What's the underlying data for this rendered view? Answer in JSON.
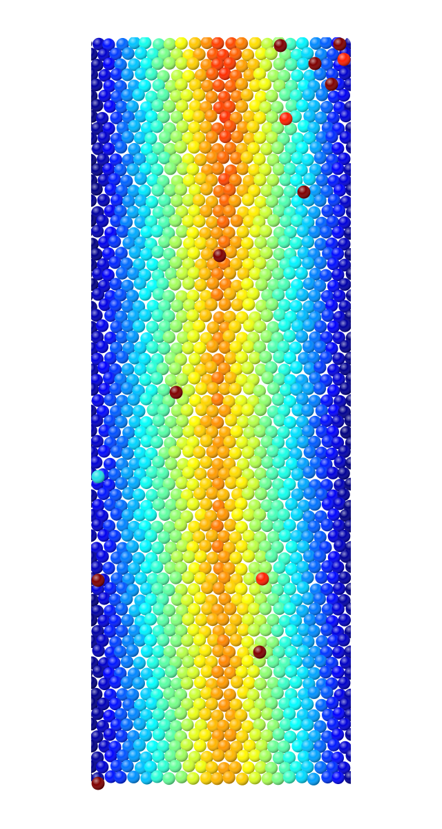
{
  "scene": {
    "description_name": "granular-packing-velocity-field",
    "background": "#ffffff",
    "colormap": [
      "#00007f",
      "#0000ff",
      "#007fff",
      "#00ffff",
      "#7fff7f",
      "#ffff00",
      "#ff7f00",
      "#ff0000",
      "#7f0000"
    ],
    "highlight_color": "#7f0000",
    "bright_red": "#ff2000",
    "cyan_outlier": "#20e0e8"
  }
}
